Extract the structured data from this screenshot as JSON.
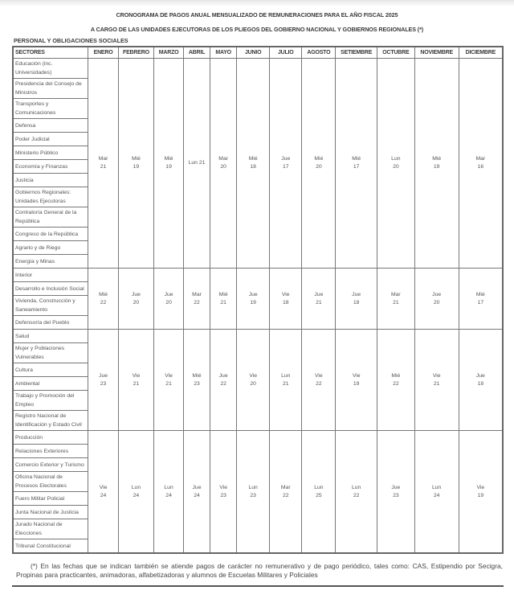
{
  "title": "CRONOGRAMA DE PAGOS ANUAL MENSUALIZADO DE REMUNERACIONES PARA EL AÑO FISCAL 2025",
  "subtitle": "A CARGO DE LAS UNIDADES EJECUTORAS DE LOS PLIEGOS DEL GOBIERNO NACIONAL Y GOBIERNOS REGIONALES (*)",
  "section": "PERSONAL Y OBLIGACIONES SOCIALES",
  "columns": [
    "SECTORES",
    "ENERO",
    "FEBRERO",
    "MARZO",
    "ABRIL",
    "MAYO",
    "JUNIO",
    "JULIO",
    "AGOSTO",
    "SETIEMBRE",
    "OCTUBRE",
    "NOVIEMBRE",
    "DICIEMBRE"
  ],
  "groups": [
    {
      "sectors": [
        "Educación (inc. Universidades)",
        "Presidencia del Consejo de Ministros",
        "Transportes y Comunicaciones",
        "Defensa",
        "Poder Judicial",
        "Ministerio Público",
        "Economía y Finanzas",
        "Justicia",
        "Gobiernos Regionales: Unidades Ejecutoras",
        "Contraloría General de la República",
        "Congreso de la República",
        "Agrario y de Riego",
        "Energía y Minas"
      ],
      "dates": [
        "Mar 21",
        "Mié 19",
        "Mié 19",
        "Lun 21",
        "Mar 20",
        "Mié 18",
        "Jue 17",
        "Mié 20",
        "Mié 17",
        "Lun 20",
        "Mié 19",
        "Mar 16"
      ]
    },
    {
      "sectors": [
        "Interior",
        "Desarrollo e Inclusión Social",
        "Vivienda, Construcción y Saneamiento",
        "Defensoría del Pueblo"
      ],
      "dates": [
        "Mié 22",
        "Jue 20",
        "Jue 20",
        "Mar 22",
        "Mié 21",
        "Jue 19",
        "Vie 18",
        "Jue 21",
        "Jue 18",
        "Mar 21",
        "Jue 20",
        "Mié 17"
      ]
    },
    {
      "sectors": [
        "Salud",
        "Mujer y Poblaciones Vulnerables",
        "Cultura",
        "Ambiental",
        "Trabajo y Promoción del Empleo",
        "Registro Nacional de Identificación y Estado Civil"
      ],
      "dates": [
        "Jue 23",
        "Vie 21",
        "Vie 21",
        "Mié 23",
        "Jue 22",
        "Vie 20",
        "Lun 21",
        "Vie 22",
        "Vie 19",
        "Mié 22",
        "Vie 21",
        "Jue 18"
      ]
    },
    {
      "sectors": [
        "Producción",
        "Relaciones Exteriores",
        "Comercio Exterior y Turismo",
        "Oficina Nacional de Procesos Electorales",
        "Fuero Militar Policial",
        "Junta Nacional de Justicia",
        "Jurado Nacional de Elecciones",
        "Tribunal Constitucional"
      ],
      "dates": [
        "Vie 24",
        "Lun 24",
        "Lun 24",
        "Jue 24",
        "Vie 23",
        "Lun 23",
        "Mar 22",
        "Lun 25",
        "Lun 22",
        "Jue 23",
        "Lun 24",
        "Vie 19"
      ]
    }
  ],
  "footnote": "(*) En las fechas que se indican también se atiende pagos de carácter no remunerativo y de pago periódico, tales como: CAS, Estipendio por Secigra, Propinas para practicantes, animadoras, alfabetizadoras y alumnos de Escuelas Militares y Policiales"
}
